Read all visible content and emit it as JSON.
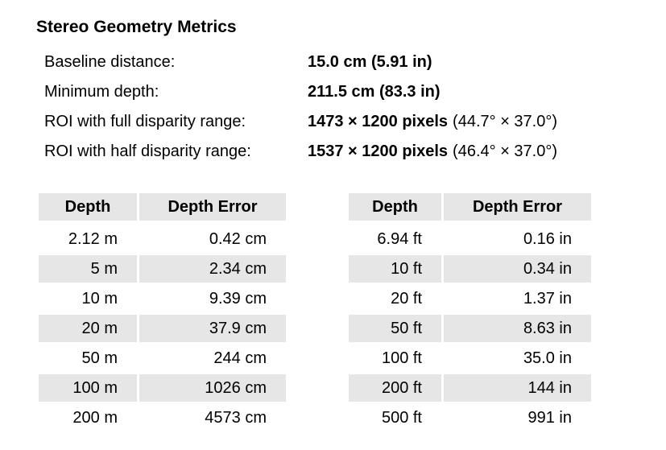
{
  "title": "Stereo Geometry Metrics",
  "metrics": [
    {
      "label": "Baseline distance:",
      "value": "15.0 cm (5.91 in)",
      "extra": ""
    },
    {
      "label": "Minimum depth:",
      "value": "211.5 cm (83.3 in)",
      "extra": ""
    },
    {
      "label": "ROI with full disparity range:",
      "value": "1473 × 1200 pixels",
      "extra": "(44.7° × 37.0°)"
    },
    {
      "label": "ROI with half disparity range:",
      "value": "1537 × 1200 pixels",
      "extra": "(46.4° × 37.0°)"
    }
  ],
  "table_metric": {
    "headers": [
      "Depth",
      "Depth Error"
    ],
    "rows": [
      [
        "2.12 m",
        "0.42 cm"
      ],
      [
        "5 m",
        "2.34 cm"
      ],
      [
        "10 m",
        "9.39 cm"
      ],
      [
        "20 m",
        "37.9 cm"
      ],
      [
        "50 m",
        "244 cm"
      ],
      [
        "100 m",
        "1026 cm"
      ],
      [
        "200 m",
        "4573 cm"
      ]
    ]
  },
  "table_imperial": {
    "headers": [
      "Depth",
      "Depth Error"
    ],
    "rows": [
      [
        "6.94 ft",
        "0.16 in"
      ],
      [
        "10 ft",
        "0.34 in"
      ],
      [
        "20 ft",
        "1.37 in"
      ],
      [
        "50 ft",
        "8.63 in"
      ],
      [
        "100 ft",
        "35.0 in"
      ],
      [
        "200 ft",
        "144 in"
      ],
      [
        "500 ft",
        "991 in"
      ]
    ]
  }
}
